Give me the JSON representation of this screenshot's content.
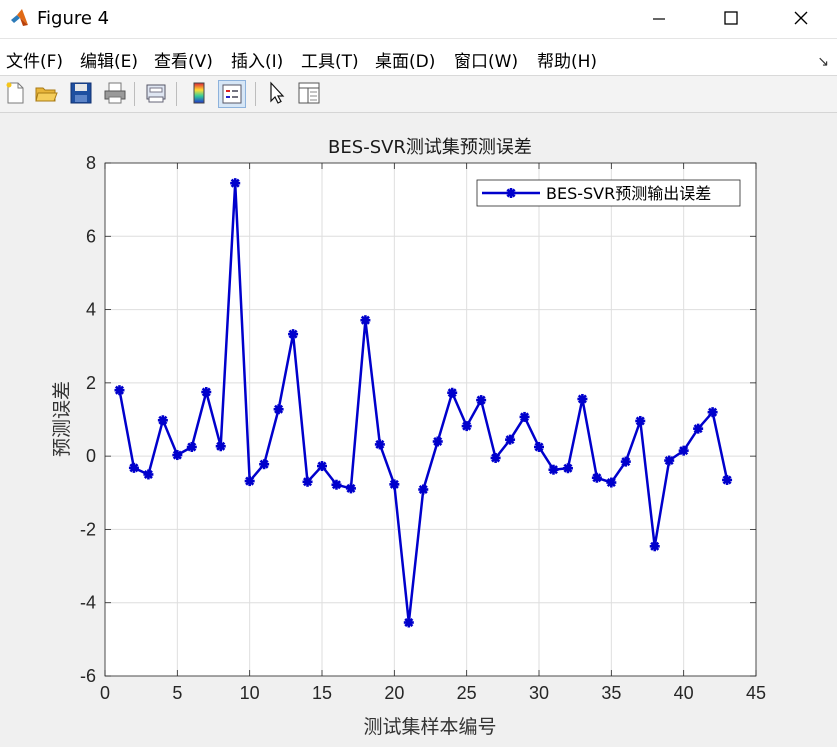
{
  "window": {
    "title": "Figure 4",
    "controls": [
      "minimize",
      "maximize",
      "close"
    ]
  },
  "menu": {
    "items": [
      {
        "label": "文件(F)",
        "id": "file"
      },
      {
        "label": "编辑(E)",
        "id": "edit"
      },
      {
        "label": "查看(V)",
        "id": "view"
      },
      {
        "label": "插入(I)",
        "id": "insert"
      },
      {
        "label": "工具(T)",
        "id": "tools"
      },
      {
        "label": "桌面(D)",
        "id": "desktop"
      },
      {
        "label": "窗口(W)",
        "id": "window"
      },
      {
        "label": "帮助(H)",
        "id": "help"
      }
    ]
  },
  "toolbar": {
    "icons": [
      "new-figure-icon",
      "open-file-icon",
      "save-icon",
      "print-icon",
      "print-preview-icon",
      "colorbar-icon",
      "legend-icon",
      "pointer-icon",
      "property-editor-icon"
    ]
  },
  "colors": {
    "series": "#0000cc",
    "grid": "#dedede",
    "axis": "#262626"
  },
  "chart_data": {
    "type": "line",
    "title": "BES-SVR测试集预测误差",
    "xlabel": "测试集样本编号",
    "ylabel": "预测误差",
    "xlim": [
      0,
      45
    ],
    "ylim": [
      -6,
      8
    ],
    "xticks": [
      0,
      5,
      10,
      15,
      20,
      25,
      30,
      35,
      40,
      45
    ],
    "yticks": [
      -6,
      -4,
      -2,
      0,
      2,
      4,
      6,
      8
    ],
    "grid": true,
    "legend_position": "top-right",
    "series": [
      {
        "name": "BES-SVR预测输出误差",
        "marker": "asterisk",
        "color": "#0000cc",
        "x": [
          1,
          2,
          3,
          4,
          5,
          6,
          7,
          8,
          9,
          10,
          11,
          12,
          13,
          14,
          15,
          16,
          17,
          18,
          19,
          20,
          21,
          22,
          23,
          24,
          25,
          26,
          27,
          28,
          29,
          30,
          31,
          32,
          33,
          34,
          35,
          36,
          37,
          38,
          39,
          40,
          41,
          42,
          43
        ],
        "values": [
          1.8,
          -0.32,
          -0.5,
          0.98,
          0.03,
          0.25,
          1.75,
          0.27,
          7.45,
          -0.68,
          -0.22,
          1.28,
          3.33,
          -0.7,
          -0.27,
          -0.78,
          -0.88,
          3.71,
          0.32,
          -0.77,
          -4.54,
          -0.91,
          0.4,
          1.73,
          0.82,
          1.53,
          -0.05,
          0.45,
          1.07,
          0.25,
          -0.37,
          -0.33,
          1.56,
          -0.59,
          -0.72,
          -0.15,
          0.96,
          -2.46,
          -0.12,
          0.15,
          0.75,
          1.2,
          -0.65
        ]
      }
    ]
  }
}
